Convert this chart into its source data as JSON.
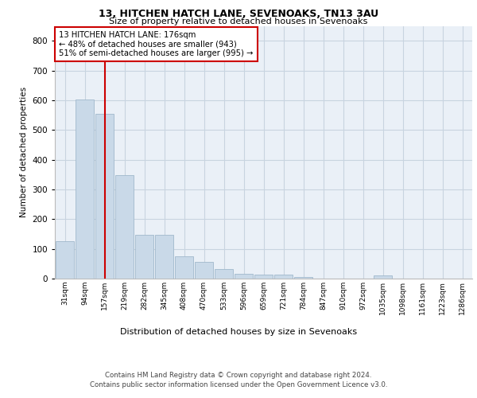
{
  "title1": "13, HITCHEN HATCH LANE, SEVENOAKS, TN13 3AU",
  "title2": "Size of property relative to detached houses in Sevenoaks",
  "xlabel": "Distribution of detached houses by size in Sevenoaks",
  "ylabel": "Number of detached properties",
  "categories": [
    "31sqm",
    "94sqm",
    "157sqm",
    "219sqm",
    "282sqm",
    "345sqm",
    "408sqm",
    "470sqm",
    "533sqm",
    "596sqm",
    "659sqm",
    "721sqm",
    "784sqm",
    "847sqm",
    "910sqm",
    "972sqm",
    "1035sqm",
    "1098sqm",
    "1161sqm",
    "1223sqm",
    "1286sqm"
  ],
  "values": [
    125,
    603,
    553,
    348,
    148,
    148,
    75,
    55,
    33,
    16,
    14,
    14,
    6,
    0,
    0,
    0,
    10,
    0,
    0,
    0,
    0
  ],
  "bar_color": "#c9d9e8",
  "bar_edge_color": "#a0b8cc",
  "vline_x": 2,
  "vline_color": "#cc0000",
  "annotation_text": "13 HITCHEN HATCH LANE: 176sqm\n← 48% of detached houses are smaller (943)\n51% of semi-detached houses are larger (995) →",
  "annotation_box_color": "#ffffff",
  "annotation_box_edge": "#cc0000",
  "ylim": [
    0,
    850
  ],
  "yticks": [
    0,
    100,
    200,
    300,
    400,
    500,
    600,
    700,
    800
  ],
  "grid_color": "#c8d4e0",
  "bg_color": "#eaf0f7",
  "footer1": "Contains HM Land Registry data © Crown copyright and database right 2024.",
  "footer2": "Contains public sector information licensed under the Open Government Licence v3.0."
}
